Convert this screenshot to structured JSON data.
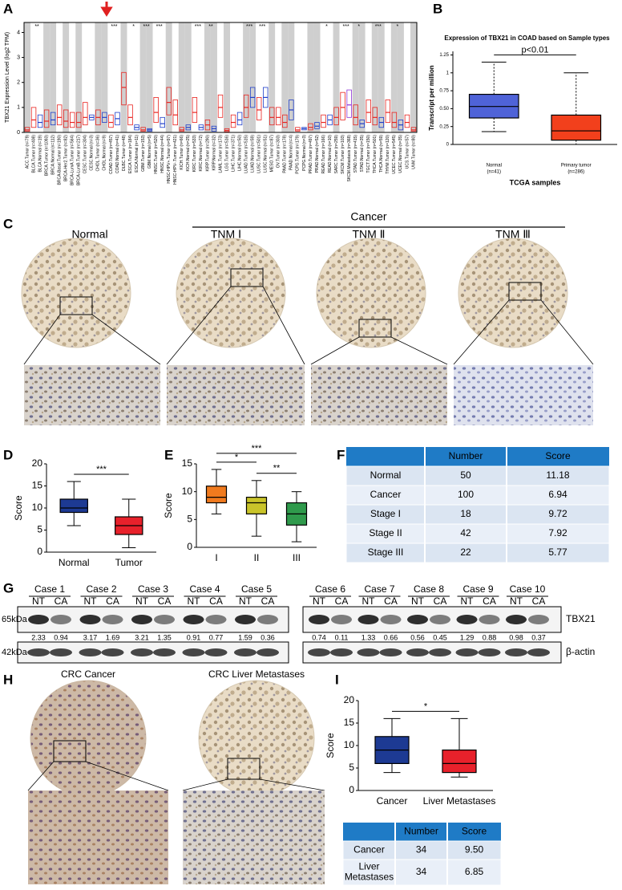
{
  "panel_labels": [
    "A",
    "B",
    "C",
    "D",
    "E",
    "F",
    "G",
    "H",
    "I"
  ],
  "chart_data": [
    {
      "type": "box",
      "ylabel": "TBX21 Expression Level (log2 TPM)",
      "categories": [
        "ACC.Tumor (n=79)",
        "BLCA.Tumor (n=408)",
        "BLCA.Normal (n=19)",
        "BRCA.Tumor (n=1093)",
        "BRCA.Normal (n=112)",
        "BRCA-Basal.Tumor (n=190)",
        "BRCA-Her2.Tumor (n=82)",
        "BRCA-LumA.Tumor (n=564)",
        "BRCA-LumB.Tumor (n=217)",
        "CESC.Tumor (n=304)",
        "CESC.Normal (n=3)",
        "CHOL.Tumor (n=36)",
        "CHOL.Normal (n=9)",
        "COAD.Tumor (n=457)",
        "COAD.Normal (n=41)",
        "DLBC.Tumor (n=48)",
        "ESCA.Tumor (n=184)",
        "ESCA.Normal (n=11)",
        "GBM.Tumor (n=153)",
        "GBM.Normal (n=5)",
        "HNSC.Tumor (n=520)",
        "HNSC.Normal (n=44)",
        "HNSC-HPV+.Tumor (n=97)",
        "HNSC-HPV-.Tumor (n=421)",
        "KICH.Tumor (n=66)",
        "KICH.Normal (n=25)",
        "KIRC.Tumor (n=533)",
        "KIRC.Normal (n=72)",
        "KIRP.Tumor (n=290)",
        "KIRP.Normal (n=32)",
        "LAML.Tumor (n=173)",
        "LGG.Tumor (n=516)",
        "LIHC.Tumor (n=371)",
        "LIHC.Normal (n=50)",
        "LUAD.Tumor (n=515)",
        "LUAD.Normal (n=59)",
        "LUSC.Tumor (n=501)",
        "LUSC.Normal (n=51)",
        "MESO.Tumor (n=87)",
        "OV.Tumor (n=303)",
        "PAAD.Tumor (n=178)",
        "PAAD.Normal (n=4)",
        "PCPG.Tumor (n=179)",
        "PCPG.Normal (n=3)",
        "PRAD.Tumor (n=497)",
        "PRAD.Normal (n=52)",
        "READ.Tumor (n=166)",
        "READ.Normal (n=10)",
        "SARC.Tumor (n=259)",
        "SKCM.Tumor (n=103)",
        "SKCM.Metastasis (n=368)",
        "STAD.Tumor (n=415)",
        "STAD.Normal (n=35)",
        "TGCT.Tumor (n=150)",
        "THCA.Tumor (n=501)",
        "THCA.Normal (n=59)",
        "THYM.Tumor (n=120)",
        "UCEC.Tumor (n=545)",
        "UCEC.Normal (n=35)",
        "UCS.Tumor (n=57)",
        "UVM.Tumor (n=80)"
      ],
      "q1": [
        0.05,
        0.2,
        0.2,
        0.2,
        0.3,
        0.3,
        0.2,
        0.2,
        0.2,
        0.3,
        0.5,
        0.3,
        0.4,
        0.2,
        0.3,
        1.1,
        0.3,
        0.1,
        0.05,
        0.05,
        0.4,
        0.2,
        0.7,
        0.3,
        0.05,
        0.1,
        0.4,
        0.1,
        0.1,
        0.05,
        0.6,
        0.03,
        0.2,
        0.3,
        0.6,
        1.0,
        0.5,
        1.0,
        0.3,
        0.3,
        0.2,
        0.5,
        0.05,
        0.1,
        0.1,
        0.15,
        0.2,
        0.3,
        0.3,
        0.5,
        0.6,
        0.3,
        0.2,
        0.4,
        0.3,
        0.2,
        0.4,
        0.2,
        0.1,
        0.2,
        0.05
      ],
      "median": [
        0.1,
        0.5,
        0.4,
        0.45,
        0.5,
        0.6,
        0.45,
        0.4,
        0.4,
        0.6,
        0.6,
        0.6,
        0.6,
        0.4,
        0.55,
        1.8,
        0.6,
        0.2,
        0.1,
        0.1,
        0.8,
        0.35,
        1.2,
        0.7,
        0.1,
        0.2,
        0.8,
        0.2,
        0.3,
        0.15,
        1.0,
        0.08,
        0.4,
        0.5,
        1.0,
        1.4,
        0.9,
        1.4,
        0.6,
        0.6,
        0.4,
        0.9,
        0.1,
        0.15,
        0.2,
        0.25,
        0.4,
        0.5,
        0.6,
        1.0,
        1.1,
        0.6,
        0.35,
        0.8,
        0.6,
        0.4,
        0.8,
        0.4,
        0.3,
        0.4,
        0.1
      ],
      "q3": [
        0.2,
        1.0,
        0.7,
        0.9,
        0.8,
        1.1,
        0.9,
        0.8,
        0.8,
        1.2,
        0.7,
        0.9,
        0.8,
        0.7,
        0.8,
        2.4,
        1.1,
        0.3,
        0.2,
        0.15,
        1.4,
        0.6,
        1.8,
        1.3,
        0.2,
        0.3,
        1.4,
        0.3,
        0.5,
        0.25,
        1.5,
        0.15,
        0.7,
        0.8,
        1.5,
        1.8,
        1.4,
        1.8,
        1.0,
        1.0,
        0.7,
        1.3,
        0.2,
        0.2,
        0.35,
        0.4,
        0.7,
        0.7,
        1.0,
        1.6,
        1.7,
        1.1,
        0.5,
        1.3,
        1.0,
        0.6,
        1.3,
        0.8,
        0.5,
        0.7,
        0.2
      ],
      "palette": {
        "Tumor": "#e8231f",
        "Normal": "#1f3ec9",
        "Metastasis": "#8e2fd6"
      },
      "significance": [
        null,
        "**",
        null,
        null,
        null,
        null,
        null,
        null,
        null,
        null,
        null,
        null,
        null,
        "***",
        null,
        null,
        "*",
        null,
        "***",
        null,
        "***",
        null,
        null,
        null,
        null,
        null,
        "***",
        null,
        "**",
        null,
        null,
        null,
        null,
        null,
        "***",
        null,
        "***",
        null,
        null,
        null,
        null,
        null,
        null,
        null,
        null,
        null,
        "*",
        null,
        null,
        "***",
        null,
        "*",
        null,
        null,
        "***",
        null,
        null,
        "*",
        null,
        null,
        null
      ],
      "ylim": [
        0,
        4.4
      ],
      "yticks": [
        0,
        1,
        2,
        3,
        4
      ]
    },
    {
      "type": "box",
      "title": "Expression of TBX21 in COAD based on Sample types",
      "ylabel": "Transcript per million",
      "xlabel": "TCGA samples",
      "categories": [
        [
          "Normal",
          "(n=41)"
        ],
        [
          "Primary tumor",
          "(n=286)"
        ]
      ],
      "boxes": [
        {
          "min": 0.18,
          "q1": 0.37,
          "median": 0.53,
          "q3": 0.7,
          "max": 1.15,
          "color": "#4f63d8"
        },
        {
          "min": 0,
          "q1": 0.06,
          "median": 0.19,
          "q3": 0.41,
          "max": 1.0,
          "color": "#f2401c"
        }
      ],
      "significance": [
        {
          "between": [
            0,
            1
          ],
          "label": "p<0.01"
        }
      ],
      "ylim": [
        0,
        1.3
      ],
      "yticks": [
        0,
        0.25,
        {
          "value": 0.5,
          "label": "0.50"
        },
        0.75,
        1,
        1.25
      ]
    },
    {
      "type": "box",
      "ylabel": "Score",
      "categories": [
        [
          "Normal"
        ],
        [
          "Tumor"
        ]
      ],
      "boxes": [
        {
          "min": 6,
          "q1": 9,
          "median": 10,
          "q3": 12,
          "max": 16,
          "color": "#1d3a93"
        },
        {
          "min": 1,
          "q1": 4,
          "median": 6,
          "q3": 8,
          "max": 12,
          "color": "#e8212b"
        }
      ],
      "significance": [
        {
          "between": [
            0,
            1
          ],
          "label": "***"
        }
      ],
      "ylim": [
        0,
        20
      ],
      "yticks": [
        0,
        5,
        10,
        15,
        20
      ]
    },
    {
      "type": "box",
      "ylabel": "Score",
      "categories": [
        [
          "I"
        ],
        [
          "II"
        ],
        [
          "III"
        ]
      ],
      "boxes": [
        {
          "min": 6,
          "q1": 8,
          "median": 9,
          "q3": 11,
          "max": 14,
          "color": "#f07a1e"
        },
        {
          "min": 2,
          "q1": 6,
          "median": 8,
          "q3": 9,
          "max": 12,
          "color": "#c9c42a"
        },
        {
          "min": 1,
          "q1": 4,
          "median": 6,
          "q3": 8,
          "max": 10,
          "color": "#2f9a4c"
        }
      ],
      "significance": [
        {
          "between": [
            0,
            2
          ],
          "label": "***"
        },
        {
          "between": [
            0,
            1
          ],
          "label": "*"
        },
        {
          "between": [
            1,
            2
          ],
          "label": "**"
        }
      ],
      "ylim": [
        0,
        15
      ],
      "yticks": [
        0,
        5,
        10,
        15
      ]
    },
    {
      "type": "box",
      "ylabel": "Score",
      "categories": [
        [
          "Cancer"
        ],
        [
          "Liver Metastases"
        ]
      ],
      "boxes": [
        {
          "min": 4,
          "q1": 6,
          "median": 9,
          "q3": 12,
          "max": 16,
          "color": "#1d3a93"
        },
        {
          "min": 3,
          "q1": 4,
          "median": 6,
          "q3": 9,
          "max": 16,
          "color": "#e8212b"
        }
      ],
      "significance": [
        {
          "between": [
            0,
            1
          ],
          "label": "*"
        }
      ],
      "ylim": [
        0,
        20
      ],
      "yticks": [
        0,
        5,
        10,
        15,
        20
      ]
    }
  ],
  "ihc_c": {
    "group_title": "Cancer",
    "labels": [
      "Normal",
      "TNM Ⅰ",
      "TNM Ⅱ",
      "TNM Ⅲ"
    ]
  },
  "table_f": {
    "header": [
      "Number",
      "Score"
    ],
    "rows": [
      {
        "name": [
          "Normal"
        ],
        "number": "50",
        "score": "11.18"
      },
      {
        "name": [
          "Cancer"
        ],
        "number": "100",
        "score": "6.94"
      },
      {
        "name": [
          "Stage I"
        ],
        "number": "18",
        "score": "9.72"
      },
      {
        "name": [
          "Stage II"
        ],
        "number": "42",
        "score": "7.92"
      },
      {
        "name": [
          "Stage III"
        ],
        "number": "22",
        "score": "5.77"
      }
    ]
  },
  "western_blot": {
    "cases": [
      "Case 1",
      "Case 2",
      "Case 3",
      "Case 4",
      "Case 5",
      "Case 6",
      "Case 7",
      "Case 8",
      "Case 9",
      "Case 10"
    ],
    "lanes": [
      "NT",
      "CA"
    ],
    "markers": [
      "65kDa",
      "42kDa"
    ],
    "proteins": [
      "TBX21",
      "β-actin"
    ],
    "values": [
      2.33,
      0.94,
      3.17,
      1.69,
      3.21,
      1.35,
      0.91,
      0.77,
      1.59,
      0.36,
      0.74,
      0.11,
      1.33,
      0.66,
      0.56,
      0.45,
      1.29,
      0.88,
      0.98,
      0.37
    ]
  },
  "ihc_h": {
    "labels": [
      "CRC Cancer",
      "CRC Liver Metastases"
    ]
  },
  "table_i": {
    "header": [
      "Number",
      "Score"
    ],
    "rows": [
      {
        "name": [
          "Cancer"
        ],
        "number": "34",
        "score": "9.50"
      },
      {
        "name": [
          "Liver",
          "Metastases"
        ],
        "number": "34",
        "score": "6.85"
      }
    ]
  }
}
